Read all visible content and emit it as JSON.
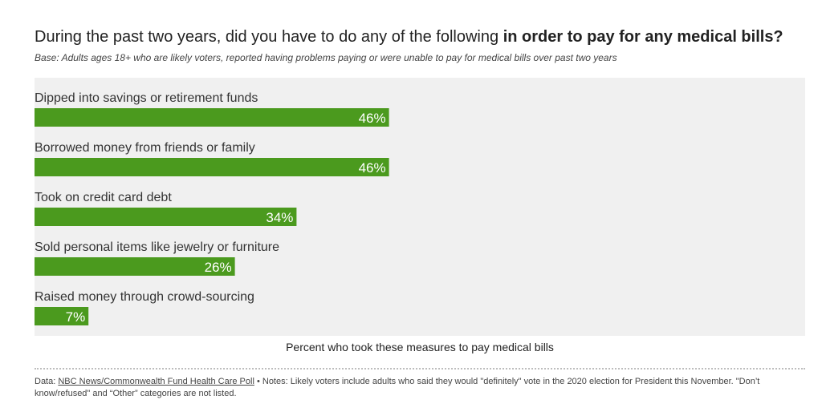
{
  "header": {
    "title_plain": "During the past two years, did you have to do any of the following ",
    "title_bold": "in order to pay for any medical bills?",
    "subtitle": "Base: Adults ages 18+ who are likely voters, reported having problems paying or were unable to pay for medical bills over past two years"
  },
  "chart_data": {
    "type": "bar",
    "orientation": "horizontal",
    "categories": [
      "Dipped into savings or retirement funds",
      "Borrowed money from friends or family",
      "Took on credit card debt",
      "Sold personal items like jewelry or furniture",
      "Raised money through crowd-sourcing"
    ],
    "values": [
      46,
      46,
      34,
      26,
      7
    ],
    "value_labels": [
      "46%",
      "46%",
      "34%",
      "26%",
      "7%"
    ],
    "xlim": [
      0,
      100
    ],
    "xlabel": "Percent who took these measures to pay medical bills",
    "bar_color": "#4b9a1e",
    "background_color": "#f0f0f0",
    "grid": false,
    "legend": "none"
  },
  "footer": {
    "data_prefix": "Data: ",
    "data_source": "NBC News/Commonwealth Fund Health Care Poll",
    "notes": " • Notes: Likely voters include adults who said they would \"definitely\" vote in the 2020 election for President this November. \"Don’t know/refused\" and “Other” categories are not listed."
  }
}
